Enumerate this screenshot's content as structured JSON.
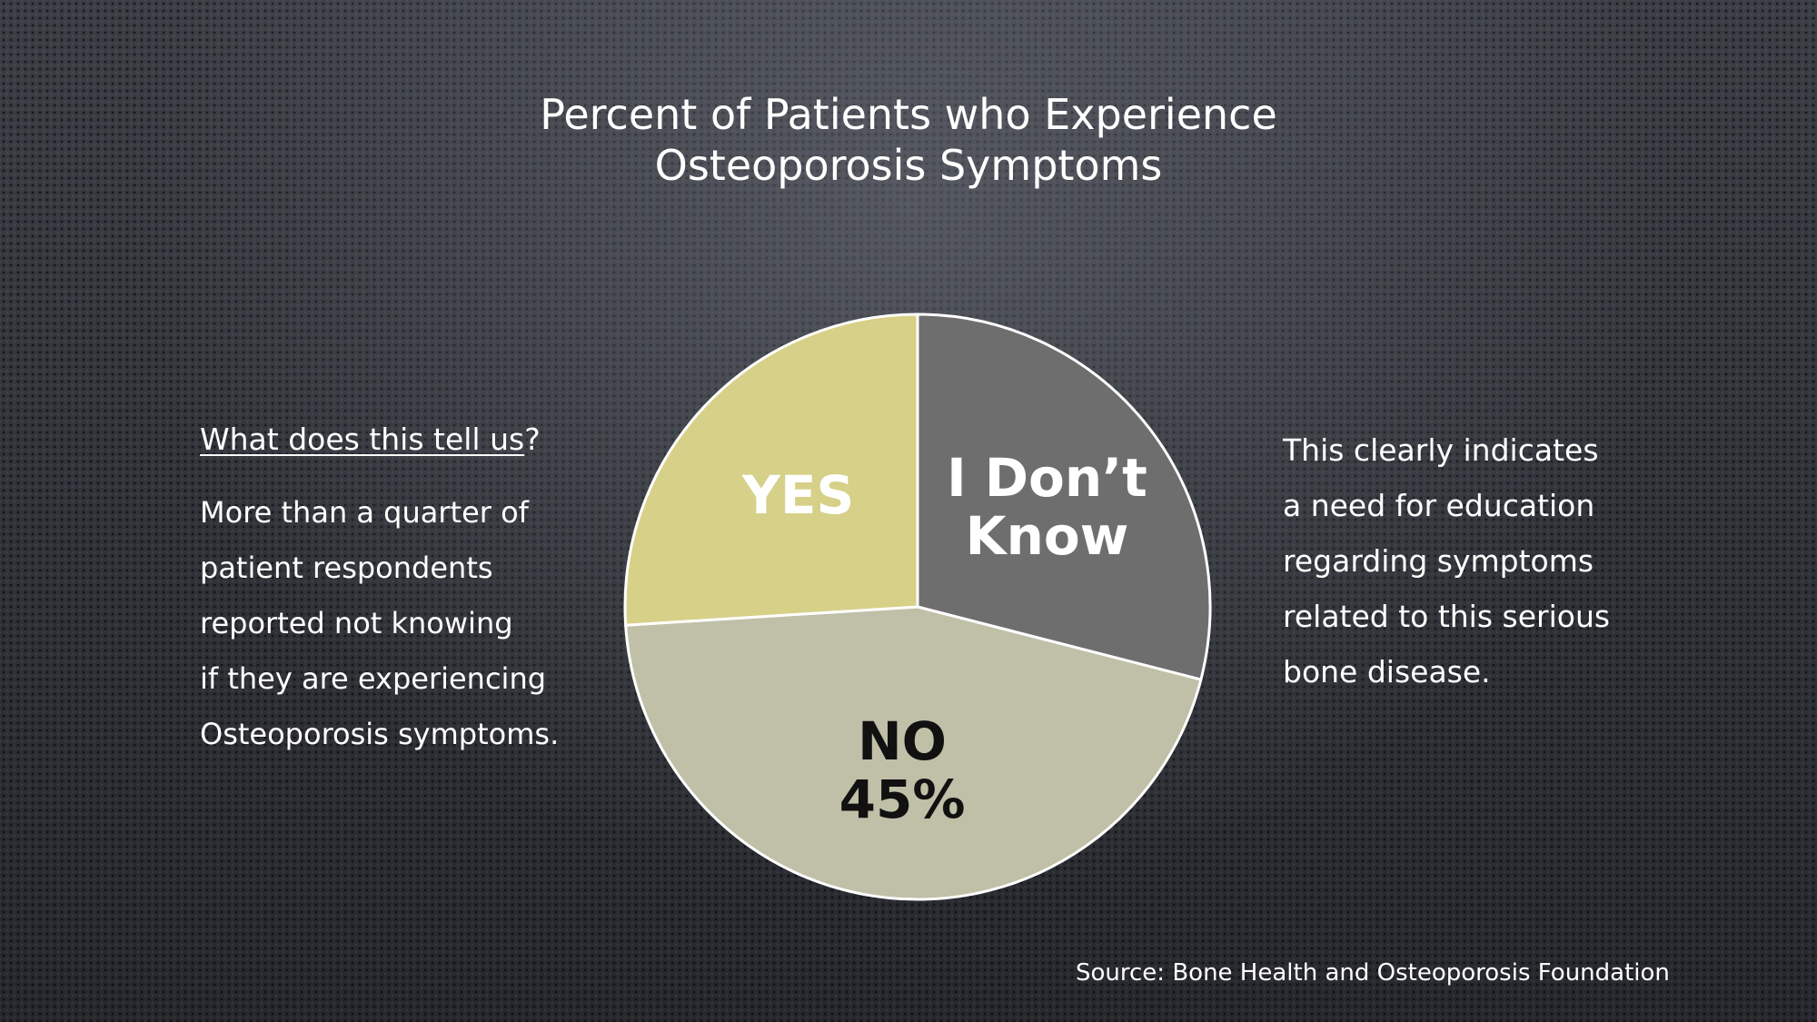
{
  "slide": {
    "title_lines": [
      "Percent of Patients who Experience",
      "Osteoporosis Symptoms"
    ],
    "left_heading_underlined": "What does this tell us",
    "left_heading_mark": "?",
    "left_body_lines": [
      "More than a quarter of",
      "patient respondents",
      "reported not knowing",
      "if they are experiencing",
      "Osteoporosis symptoms."
    ],
    "right_body_lines": [
      "This clearly indicates",
      "a need for education",
      "regarding symptoms",
      "related to this serious",
      "bone disease."
    ],
    "source": "Source: Bone Health and Osteoporosis Foundation"
  },
  "chart_data": {
    "type": "pie",
    "title": "Percent of Patients who Experience Osteoporosis Symptoms",
    "start_angle_deg": 0,
    "direction": "clockwise",
    "slices": [
      {
        "name": "I Don't Know",
        "label_lines": [
          "I Don’t",
          "Know"
        ],
        "value": 29,
        "color": "#6e6e6e",
        "text_color": "#ffffff"
      },
      {
        "name": "NO",
        "label_lines": [
          "NO",
          "45%"
        ],
        "value": 45,
        "color": "#c0c0a8",
        "text_color": "#111111"
      },
      {
        "name": "YES",
        "label_lines": [
          "YES"
        ],
        "value": 26,
        "color": "#d7d088",
        "text_color": "#ffffff"
      }
    ]
  }
}
